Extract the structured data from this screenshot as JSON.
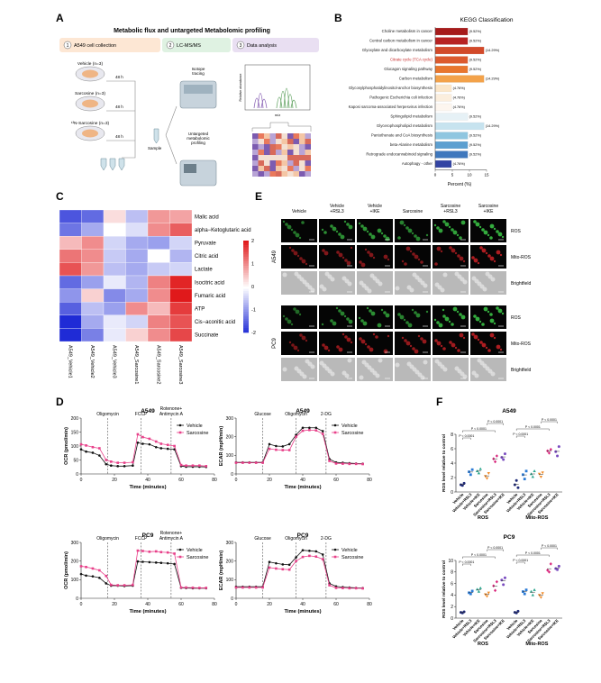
{
  "panel_letters": {
    "a": "A",
    "b": "B",
    "c": "C",
    "d": "D",
    "e": "E",
    "f": "F"
  },
  "panel_a": {
    "title": "Metabolic flux and untargeted Metabolomic profiling",
    "steps": [
      {
        "num": "1",
        "label": "A549 cell collection"
      },
      {
        "num": "2",
        "label": "LC-MS/MS"
      },
      {
        "num": "3",
        "label": "Data analysis"
      }
    ],
    "groups": [
      "Vehicle (n=3)",
      "Sarcosine (n=3)",
      "¹³N-Sarcosine (n=3)"
    ],
    "times": [
      "48 h",
      "48 h",
      "48 h"
    ],
    "isotope_label": "Isotope\ntracing",
    "sample_label": "Sample",
    "untargeted_label": "Untargeted\nmetabolomic\nprofiling",
    "ms_xlabel": "m/z",
    "ms_ylabel": "Relative abundance",
    "colors": {
      "step1": "#fde7d4",
      "step2": "#dff2e2",
      "step3": "#e9dff2",
      "dish": "#e8e8ef"
    }
  },
  "panel_b": {
    "title": "KEGG Classification",
    "xlabel": "Percent (%)",
    "xlim": [
      0,
      15
    ],
    "xticks": [
      "0",
      "5",
      "10",
      "15"
    ],
    "chart_data": {
      "type": "bar",
      "categories": [
        "Choline metabolism in cancer",
        "Central carbon metabolism in cancer",
        "Glyoxylate and dicarboxylate metabolism",
        "Citrate cycle (TCA cycle)",
        "Glucagon signaling pathway",
        "Carbon metabolism",
        "Glycosylphosphatidylinositol-anchor biosynthesis",
        "Pathogenic Escherichia coli infection",
        "Kaposi sarcoma-associated herpesvirus infection",
        "Sphingolipid metabolism",
        "Glycerophospholipid metabolism",
        "Pantothenate and CoA biosynthesis",
        "beta-Alanine metabolism",
        "Retrograde endocannabinoid signaling",
        "Autophagy - other"
      ],
      "values": [
        9.52,
        9.52,
        14.29,
        9.52,
        9.52,
        14.29,
        4.76,
        4.76,
        4.76,
        9.52,
        14.29,
        9.52,
        9.52,
        9.52,
        4.76
      ],
      "value_labels": [
        "(9.52%)",
        "(9.52%)",
        "(14.29%)",
        "(9.52%)",
        "(9.52%)",
        "(14.29%)",
        "(4.76%)",
        "(4.76%)",
        "(4.76%)",
        "(9.52%)",
        "(14.29%)",
        "(9.52%)",
        "(9.52%)",
        "(9.52%)",
        "(4.76%)"
      ],
      "highlight_index": 3,
      "colors": [
        "#a61b1b",
        "#b72222",
        "#d24a2a",
        "#dc5a2e",
        "#e8762e",
        "#f3a24a",
        "#fbe6c9",
        "#fbeedd",
        "#fdf6ef",
        "#e6f1f6",
        "#c7e3ef",
        "#8fc6e0",
        "#5c9fd0",
        "#3f78bd",
        "#3344a3"
      ],
      "highlight_color": "#c62828"
    }
  },
  "panel_c": {
    "columns": [
      "A549_Vehicle1",
      "A549_Vehicle2",
      "A549_Vehicle3",
      "A549_Sarcosine1",
      "A549_Sarcosine2",
      "A549_Sarcosine3"
    ],
    "rows": [
      "Malic acid",
      "alpha−Ketoglutaric acid",
      "Pyruvate",
      "Citric acid",
      "Lactate",
      "Isocitric acid",
      "Fumaric acid",
      "ATP",
      "Cis−aconitic acid",
      "Succinate"
    ],
    "chart_data": {
      "type": "heatmap",
      "values": [
        [
          -1.6,
          -1.4,
          0.3,
          -0.6,
          0.9,
          0.8
        ],
        [
          -1.3,
          -0.8,
          0.0,
          -0.3,
          1.0,
          1.4
        ],
        [
          0.6,
          1.0,
          -0.4,
          -0.8,
          -0.9,
          -0.4
        ],
        [
          1.2,
          1.0,
          -0.5,
          -0.8,
          0.0,
          -0.7
        ],
        [
          1.5,
          0.9,
          -0.6,
          -0.8,
          -0.5,
          -0.4
        ],
        [
          -1.4,
          -0.9,
          -0.2,
          -0.7,
          1.1,
          1.9
        ],
        [
          -1.0,
          0.4,
          -1.1,
          -0.8,
          1.0,
          2.0
        ],
        [
          -1.5,
          -0.6,
          -0.9,
          1.0,
          0.6,
          1.7
        ],
        [
          -2.0,
          -0.8,
          -0.2,
          -0.4,
          1.1,
          1.5
        ],
        [
          -2.0,
          -1.2,
          -0.2,
          0.4,
          1.0,
          1.6
        ]
      ],
      "range": [
        -2,
        2
      ]
    },
    "colorbar_ticks": [
      "2",
      "1",
      "0",
      "-1",
      "-2"
    ]
  },
  "panel_e": {
    "conditions": [
      "Vehicle",
      "Vehicle\n+RSL3",
      "Vehicle\n+IKE",
      "Sarcosine",
      "Sarcosine\n+RSL3",
      "Sarcosine\n+IKE"
    ],
    "cell_lines": [
      "A549",
      "PC9"
    ],
    "stains": [
      "ROS",
      "Mito-ROS",
      "Brightfield"
    ],
    "green_levels": [
      [
        0.35,
        0.55,
        0.6,
        0.45,
        0.7,
        0.8
      ],
      [
        0.25,
        0.45,
        0.55,
        0.45,
        0.75,
        0.8
      ]
    ],
    "red_levels": [
      [
        0.3,
        0.35,
        0.35,
        0.35,
        0.45,
        0.7
      ],
      [
        0.3,
        0.5,
        0.5,
        0.5,
        0.6,
        0.7
      ]
    ]
  },
  "panel_d": {
    "charts": [
      {
        "title": "A549",
        "ylabel": "OCR (pmol/min)",
        "xlabel": "Time (minutes)",
        "ylim": [
          0,
          200
        ],
        "yticks": [
          "0",
          "50",
          "100",
          "150",
          "200"
        ],
        "injections": [
          "Oligomycin",
          "FCCP",
          "Rotenone+\nAntimycin A"
        ],
        "chart_data": {
          "type": "line",
          "x": [
            0,
            3,
            7,
            11,
            15,
            18,
            22,
            26,
            31,
            34,
            37,
            41,
            45,
            48,
            52,
            56,
            60,
            63,
            67,
            71,
            75
          ],
          "series": [
            {
              "name": "Vehicle",
              "values": [
                88,
                80,
                76,
                66,
                35,
                30,
                28,
                28,
                30,
                112,
                108,
                106,
                96,
                92,
                90,
                88,
                28,
                26,
                26,
                26,
                25
              ]
            },
            {
              "name": "Sarcosine",
              "values": [
                106,
                102,
                96,
                92,
                50,
                44,
                40,
                40,
                42,
                142,
                132,
                126,
                116,
                108,
                104,
                100,
                32,
                30,
                30,
                30,
                28
              ]
            }
          ]
        }
      },
      {
        "title": "A549",
        "ylabel": "ECAR (mpH/min)",
        "xlabel": "Time (minutes)",
        "ylim": [
          0,
          300
        ],
        "yticks": [
          "0",
          "100",
          "200",
          "300"
        ],
        "injections": [
          "Glucose",
          "Oligomycin",
          "2-DG"
        ],
        "chart_data": {
          "type": "line",
          "x": [
            0,
            4,
            8,
            12,
            16,
            20,
            24,
            28,
            32,
            36,
            40,
            44,
            48,
            52,
            56,
            60,
            64,
            68,
            72,
            76
          ],
          "series": [
            {
              "name": "Vehicle",
              "values": [
                62,
                62,
                62,
                62,
                62,
                160,
                150,
                148,
                160,
                210,
                248,
                248,
                248,
                230,
                80,
                62,
                60,
                58,
                56,
                55
              ]
            },
            {
              "name": "Sarcosine",
              "values": [
                60,
                60,
                60,
                60,
                60,
                135,
                130,
                128,
                128,
                200,
                232,
                236,
                234,
                215,
                70,
                56,
                55,
                54,
                54,
                53
              ]
            }
          ]
        }
      },
      {
        "title": "PC9",
        "ylabel": "OCR (pmol/min)",
        "xlabel": "Time (minutes)",
        "ylim": [
          0,
          300
        ],
        "yticks": [
          "0",
          "100",
          "200",
          "300"
        ],
        "injections": [
          "Oligomycin",
          "FCCP",
          "Rotenone+\nAntimycin A"
        ],
        "chart_data": {
          "type": "line",
          "x": [
            0,
            3,
            7,
            11,
            15,
            18,
            22,
            26,
            31,
            34,
            37,
            41,
            45,
            48,
            52,
            56,
            60,
            63,
            67,
            71,
            75
          ],
          "series": [
            {
              "name": "Vehicle",
              "values": [
                130,
                122,
                118,
                110,
                80,
                68,
                68,
                66,
                68,
                198,
                196,
                194,
                192,
                190,
                188,
                184,
                56,
                55,
                54,
                54,
                54
              ]
            },
            {
              "name": "Sarcosine",
              "values": [
                172,
                168,
                160,
                150,
                120,
                72,
                70,
                70,
                72,
                256,
                254,
                250,
                252,
                248,
                246,
                240,
                58,
                58,
                57,
                56,
                56
              ]
            }
          ]
        }
      },
      {
        "title": "PC9",
        "ylabel": "ECAR (mpH/min)",
        "xlabel": "Time (minutes)",
        "ylim": [
          0,
          300
        ],
        "yticks": [
          "0",
          "100",
          "200",
          "300"
        ],
        "injections": [
          "Glucose",
          "Oligomycin",
          "2-DG"
        ],
        "chart_data": {
          "type": "line",
          "x": [
            0,
            4,
            8,
            12,
            16,
            20,
            24,
            28,
            32,
            36,
            40,
            44,
            48,
            52,
            56,
            60,
            64,
            68,
            72,
            76
          ],
          "series": [
            {
              "name": "Vehicle",
              "values": [
                62,
                62,
                62,
                62,
                62,
                195,
                188,
                182,
                180,
                220,
                258,
                255,
                252,
                235,
                80,
                64,
                60,
                58,
                56,
                55
              ]
            },
            {
              "name": "Sarcosine",
              "values": [
                58,
                58,
                58,
                58,
                58,
                165,
                160,
                156,
                154,
                200,
                222,
                228,
                224,
                210,
                70,
                56,
                55,
                54,
                54,
                53
              ]
            }
          ]
        }
      }
    ],
    "legend": [
      "Vehicle",
      "Sarcosine"
    ],
    "xticks": [
      "0",
      "20",
      "40",
      "60",
      "80"
    ],
    "colors": {
      "vehicle": "#111111",
      "sarcosine": "#e8418a"
    }
  },
  "panel_f": {
    "charts": [
      {
        "title": "A549",
        "ylabel": "ROS level relative to control",
        "ylim": [
          0,
          8
        ],
        "yticks": [
          "0",
          "2",
          "4",
          "6",
          "8"
        ],
        "pvalues": [
          "P < 0.0001",
          "P < 0.0001",
          "P < 0.0001",
          "P < 0.0001",
          "P < 0.0001",
          "P < 0.0001"
        ],
        "chart_data": {
          "type": "scatter",
          "categories": [
            "Vehicle",
            "Vehicle+RSL3",
            "Vehicle+IKE",
            "Sarcosine",
            "Sarcosine+RSL3",
            "Sarcosine+IKE"
          ],
          "groups": [
            "ROS",
            "Mito-ROS"
          ],
          "series": [
            {
              "group": "ROS",
              "values": [
                [
                  1.0,
                  0.9,
                  1.2
                ],
                [
                  2.8,
                  2.4,
                  3.1
                ],
                [
                  2.9,
                  2.6,
                  3.2
                ],
                [
                  2.2,
                  1.9,
                  2.6
                ],
                [
                  4.6,
                  4.2,
                  5.0
                ],
                [
                  4.8,
                  4.5,
                  5.3
                ]
              ]
            },
            {
              "group": "Mito-ROS",
              "values": [
                [
                  1.0,
                  1.6,
                  0.6
                ],
                [
                  2.4,
                  1.8,
                  2.9
                ],
                [
                  2.5,
                  2.1,
                  2.9
                ],
                [
                  2.5,
                  2.1,
                  2.7
                ],
                [
                  5.7,
                  5.4,
                  5.9
                ],
                [
                  5.6,
                  5.0,
                  6.3
                ]
              ]
            }
          ]
        }
      },
      {
        "title": "PC9",
        "ylabel": "ROS level relative to control",
        "ylim": [
          0,
          10
        ],
        "yticks": [
          "0",
          "2",
          "4",
          "6",
          "8",
          "10"
        ],
        "pvalues": [
          "P < 0.0001",
          "P < 0.0001",
          "P < 0.0001",
          "P < 0.0001",
          "P < 0.0001",
          "P < 0.0001"
        ],
        "chart_data": {
          "type": "scatter",
          "categories": [
            "Vehicle",
            "Vehicle+RSL3",
            "Vehicle+IKE",
            "Sarcosine",
            "Sarcosine+RSL3",
            "Sarcosine+IKE"
          ],
          "groups": [
            "ROS",
            "Mito-ROS"
          ],
          "series": [
            {
              "group": "ROS",
              "values": [
                [
                  1.0,
                  0.9,
                  1.1
                ],
                [
                  4.4,
                  4.2,
                  4.7
                ],
                [
                  5.0,
                  4.6,
                  5.2
                ],
                [
                  4.1,
                  3.8,
                  4.4
                ],
                [
                  5.6,
                  4.8,
                  6.3
                ],
                [
                  6.6,
                  5.8,
                  7.0
                ]
              ]
            },
            {
              "group": "Mito-ROS",
              "values": [
                [
                  1.0,
                  0.9,
                  1.2
                ],
                [
                  4.6,
                  4.2,
                  4.9
                ],
                [
                  4.6,
                  4.0,
                  4.9
                ],
                [
                  4.0,
                  3.6,
                  4.3
                ],
                [
                  8.3,
                  8.0,
                  9.4
                ],
                [
                  8.6,
                  8.4,
                  9.0
                ]
              ]
            }
          ]
        }
      }
    ],
    "colors": [
      "#1f2a78",
      "#2b7bd6",
      "#2aa58d",
      "#f28c2a",
      "#d9267c",
      "#7a4cc0"
    ]
  }
}
